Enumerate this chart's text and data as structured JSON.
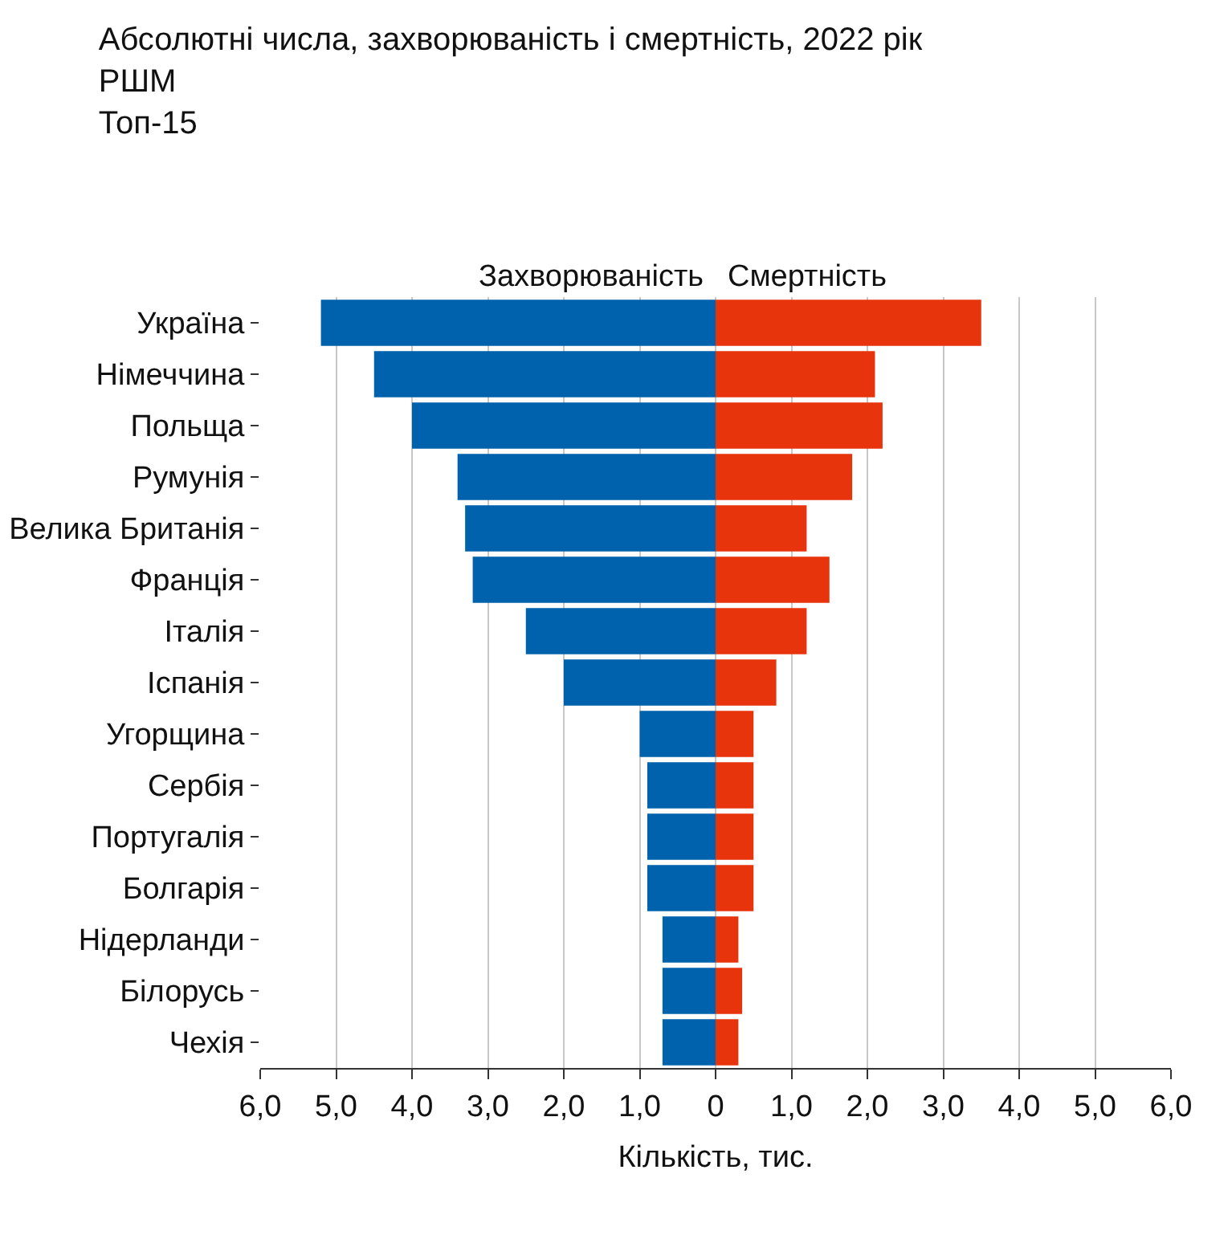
{
  "chart_data": {
    "type": "bar",
    "orientation": "horizontal",
    "title": "Абсолютні числа, захворюваність і смертність, 2022 рік\nРШМ\nТоп-15",
    "xlabel": "Кількість, тис.",
    "categories": [
      "Україна",
      "Німеччина",
      "Польща",
      "Румунія",
      "Велика Британія",
      "Франція",
      "Італія",
      "Іспанія",
      "Угорщина",
      "Сербія",
      "Португалія",
      "Болгарія",
      "Нідерланди",
      "Білорусь",
      "Чехія"
    ],
    "series": [
      {
        "name": "Захворюваність",
        "color": "#0061ac",
        "values": [
          -5.2,
          -4.5,
          -4.0,
          -3.4,
          -3.3,
          -3.2,
          -2.5,
          -2.0,
          -1.0,
          -0.9,
          -0.9,
          -0.9,
          -0.7,
          -0.7,
          -0.7
        ]
      },
      {
        "name": "Смертність",
        "color": "#e8340c",
        "values": [
          3.5,
          2.1,
          2.2,
          1.8,
          1.2,
          1.5,
          1.2,
          0.8,
          0.5,
          0.5,
          0.5,
          0.5,
          0.3,
          0.35,
          0.3
        ]
      }
    ],
    "xlim": [
      -6,
      6
    ],
    "xticks": [
      {
        "value": -6,
        "label": "6,0"
      },
      {
        "value": -5,
        "label": "5,0"
      },
      {
        "value": -4,
        "label": "4,0"
      },
      {
        "value": -3,
        "label": "3,0"
      },
      {
        "value": -2,
        "label": "2,0"
      },
      {
        "value": -1,
        "label": "1,0"
      },
      {
        "value": 0,
        "label": "0"
      },
      {
        "value": 1,
        "label": "1,0"
      },
      {
        "value": 2,
        "label": "2,0"
      },
      {
        "value": 3,
        "label": "3,0"
      },
      {
        "value": 4,
        "label": "4,0"
      },
      {
        "value": 5,
        "label": "5,0"
      },
      {
        "value": 6,
        "label": "6,0"
      }
    ],
    "grid": "x",
    "stacked": true
  }
}
